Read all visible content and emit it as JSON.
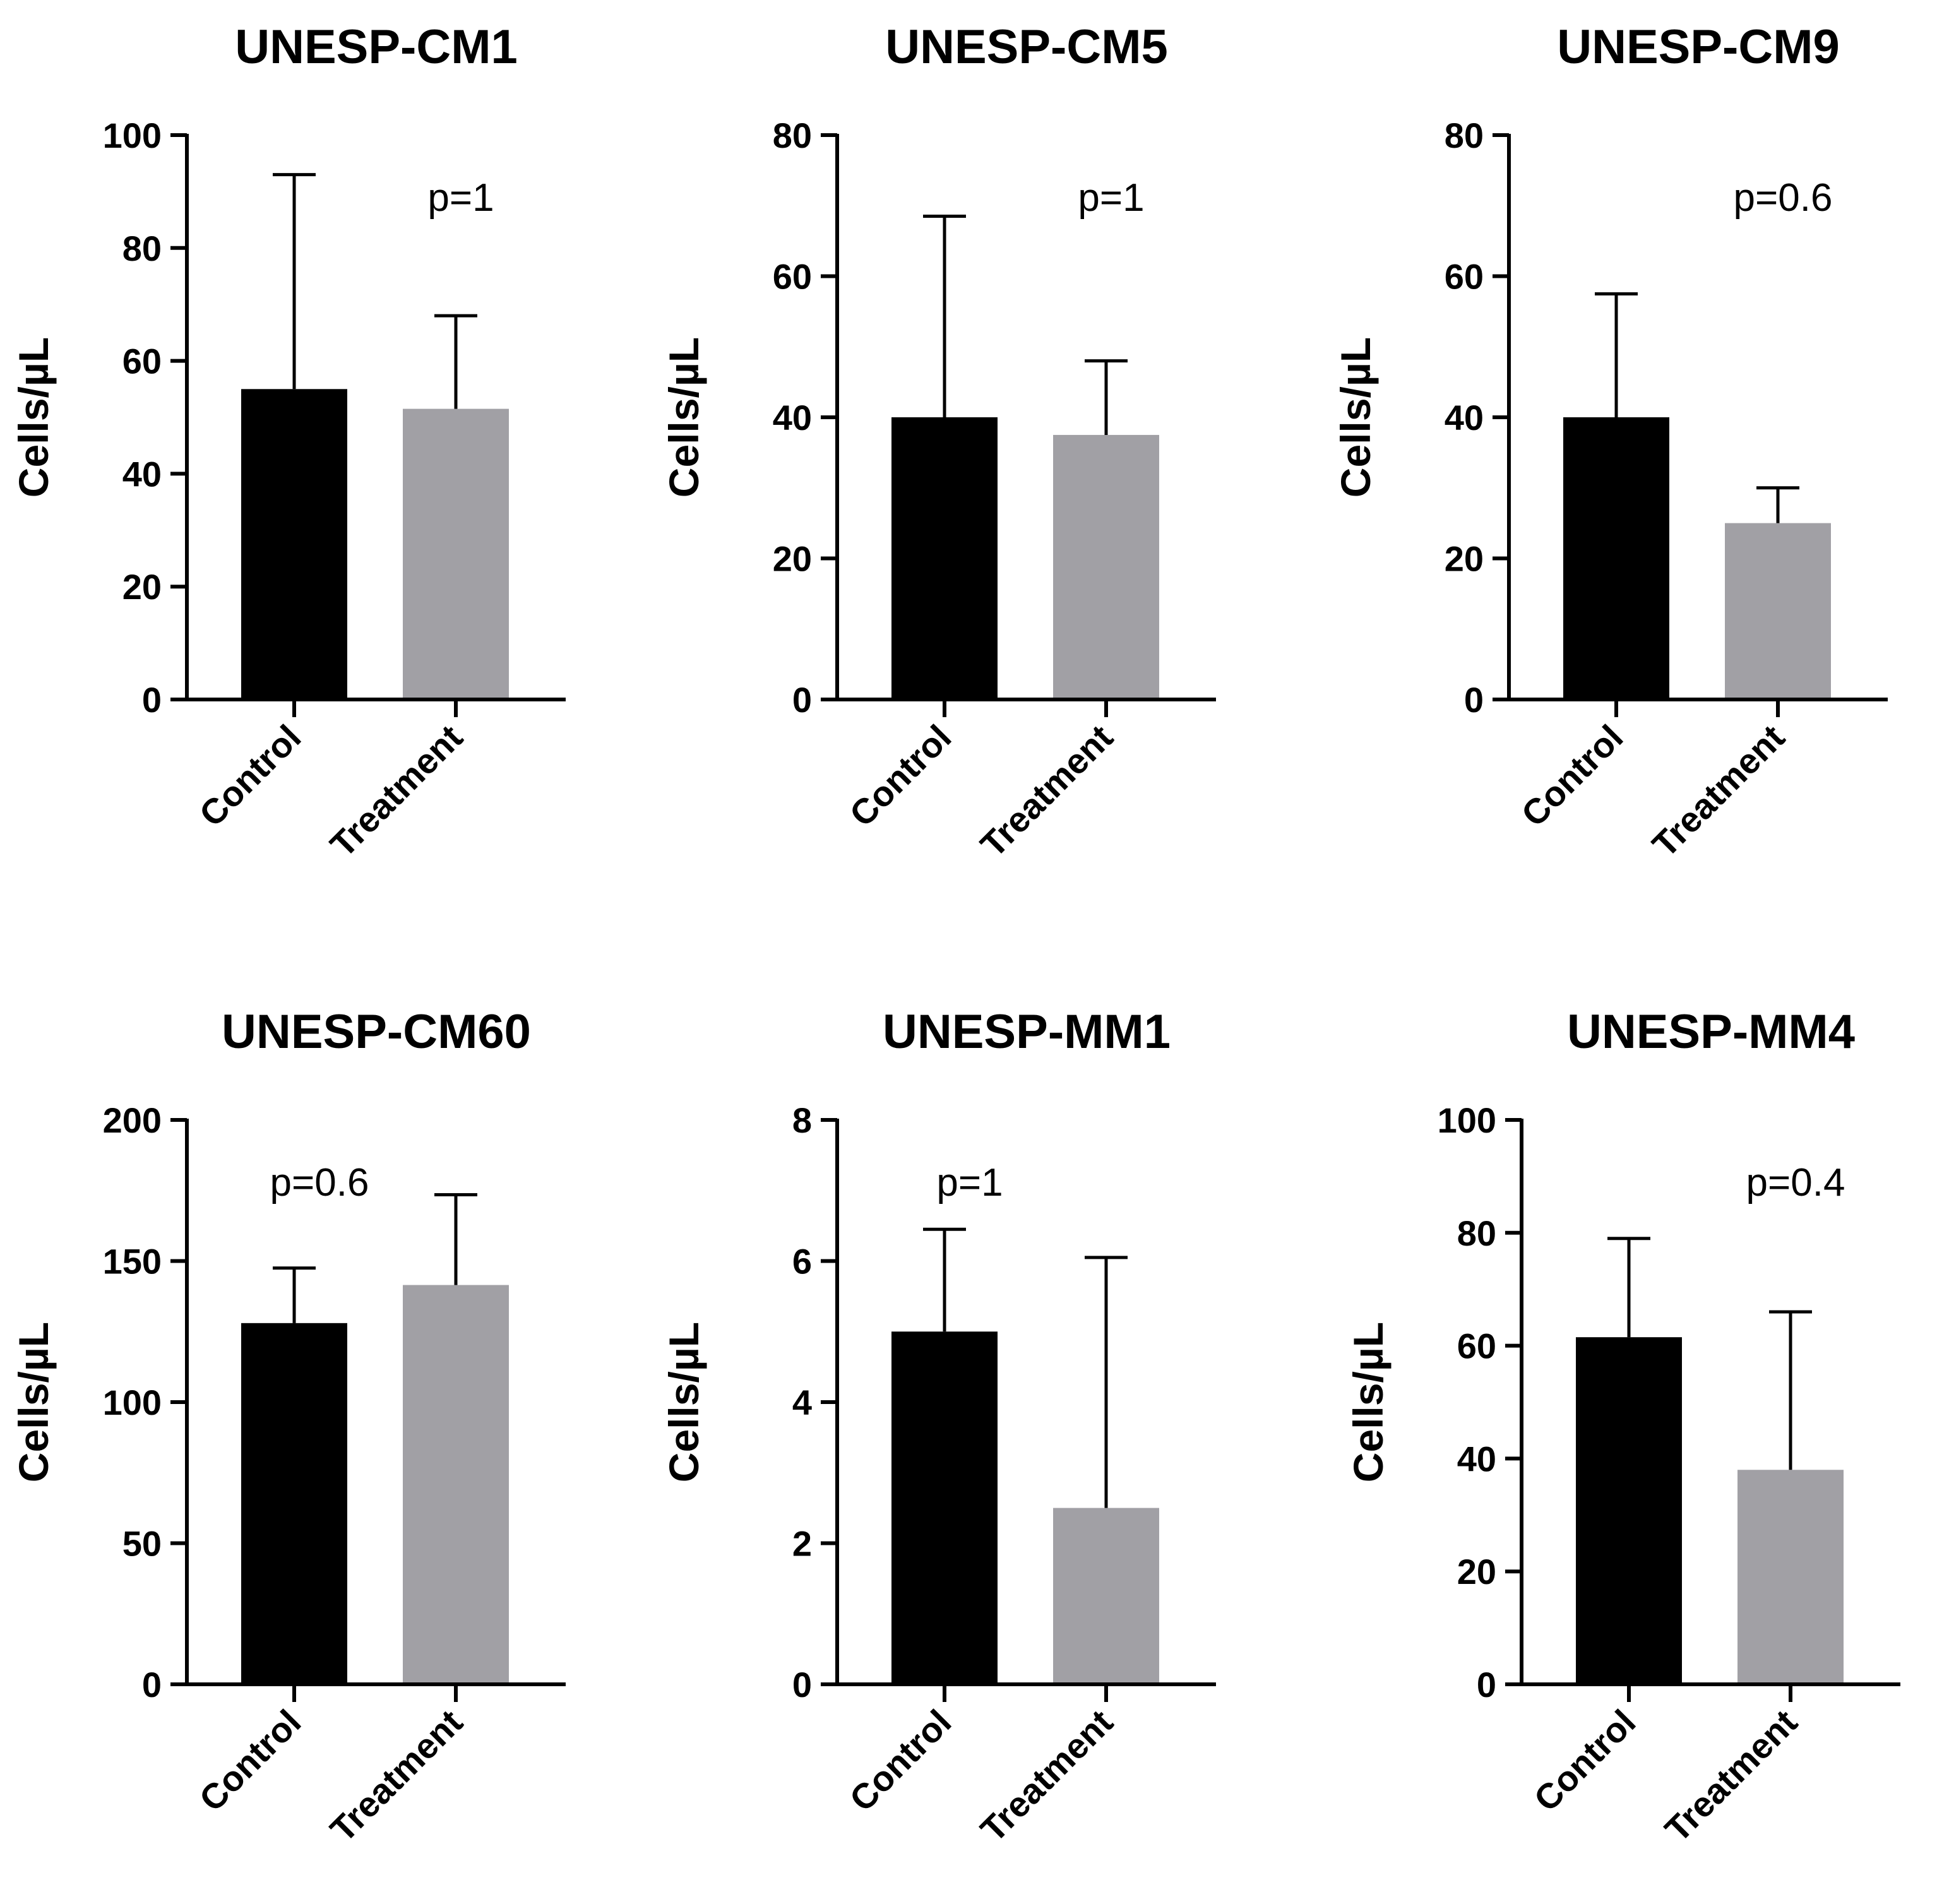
{
  "colors": {
    "control": "#000000",
    "treatment": "#a1a0a5",
    "axis": "#000000"
  },
  "chart_data": [
    {
      "type": "bar",
      "title": "UNESP-CM1",
      "xlabel": "",
      "ylabel": "Cells/µL",
      "categories": [
        "Control",
        "Treatment"
      ],
      "values": [
        55,
        51.5
      ],
      "error_upper": [
        93,
        68
      ],
      "ylim": [
        0,
        100
      ],
      "yticks": [
        0,
        20,
        40,
        60,
        80,
        100
      ],
      "annotation": "p=1",
      "annotation_pos": "top-right"
    },
    {
      "type": "bar",
      "title": "UNESP-CM5",
      "xlabel": "",
      "ylabel": "Cells/µL",
      "categories": [
        "Control",
        "Treatment"
      ],
      "values": [
        40,
        37.5
      ],
      "error_upper": [
        68.5,
        48
      ],
      "ylim": [
        0,
        80
      ],
      "yticks": [
        0,
        20,
        40,
        60,
        80
      ],
      "annotation": "p=1",
      "annotation_pos": "top-right"
    },
    {
      "type": "bar",
      "title": "UNESP-CM9",
      "xlabel": "",
      "ylabel": "Cells/µL",
      "categories": [
        "Control",
        "Treatment"
      ],
      "values": [
        40,
        25
      ],
      "error_upper": [
        57.5,
        30
      ],
      "ylim": [
        0,
        80
      ],
      "yticks": [
        0,
        20,
        40,
        60,
        80
      ],
      "annotation": "p=0.6",
      "annotation_pos": "top-right"
    },
    {
      "type": "bar",
      "title": "UNESP-CM60",
      "xlabel": "",
      "ylabel": "Cells/µL",
      "categories": [
        "Control",
        "Treatment"
      ],
      "values": [
        128,
        141.5
      ],
      "error_upper": [
        147.5,
        173.5
      ],
      "ylim": [
        0,
        200
      ],
      "yticks": [
        0,
        50,
        100,
        150,
        200
      ],
      "annotation": "p=0.6",
      "annotation_pos": "top-left"
    },
    {
      "type": "bar",
      "title": "UNESP-MM1",
      "xlabel": "",
      "ylabel": "Cells/µL",
      "categories": [
        "Control",
        "Treatment"
      ],
      "values": [
        5,
        2.5
      ],
      "error_upper": [
        6.45,
        6.05
      ],
      "ylim": [
        0,
        8
      ],
      "yticks": [
        0,
        2,
        4,
        6,
        8
      ],
      "annotation": "p=1",
      "annotation_pos": "top-left"
    },
    {
      "type": "bar",
      "title": "UNESP-MM4",
      "xlabel": "",
      "ylabel": "Cells/µL",
      "categories": [
        "Control",
        "Treatment"
      ],
      "values": [
        61.5,
        38
      ],
      "error_upper": [
        79,
        66
      ],
      "ylim": [
        0,
        100
      ],
      "yticks": [
        0,
        20,
        40,
        60,
        80,
        100
      ],
      "annotation": "p=0.4",
      "annotation_pos": "top-right"
    }
  ]
}
